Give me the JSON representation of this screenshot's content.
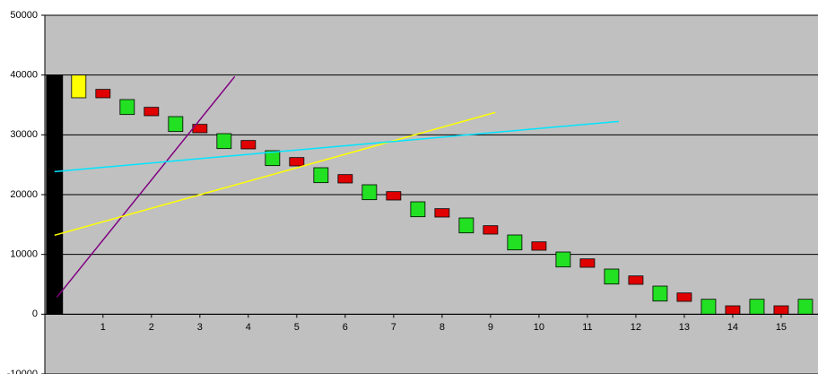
{
  "chart_data": {
    "type": "floating-bar",
    "xlim": [
      -0.2,
      15.76
    ],
    "xticks": [
      1,
      2,
      3,
      4,
      5,
      6,
      7,
      8,
      9,
      10,
      11,
      12,
      13,
      14,
      15
    ],
    "ylim": [
      -10000,
      50000
    ],
    "yticks": [
      -10000,
      0,
      10000,
      20000,
      30000,
      40000,
      50000
    ],
    "grid": true,
    "series": [
      {
        "color": "#000000",
        "x": [
          0
        ],
        "low": [
          0
        ],
        "high": [
          40000
        ]
      },
      {
        "color": "#ffff00",
        "x": [
          0.5
        ],
        "low": [
          36200
        ],
        "high": [
          40000
        ]
      },
      {
        "color": "#22e022",
        "x": [
          1.5,
          2.5,
          3.5,
          4.5,
          5.5,
          6.5,
          7.5,
          8.5,
          9.5,
          10.5,
          11.5,
          12.5,
          13.5,
          14.5,
          15.5
        ],
        "low": [
          33400,
          30550,
          27700,
          24850,
          22000,
          19150,
          16300,
          13600,
          10750,
          7900,
          5050,
          2200,
          0,
          0,
          0
        ],
        "high": [
          35900,
          33050,
          30200,
          27350,
          24500,
          21650,
          18800,
          16100,
          13250,
          10400,
          7550,
          4700,
          2500,
          2500,
          2500
        ]
      },
      {
        "color": "#e00000",
        "x": [
          1,
          2,
          3,
          4,
          5,
          6,
          7,
          8,
          9,
          10,
          11,
          12,
          13,
          14,
          15
        ],
        "low": [
          36200,
          33200,
          30350,
          27650,
          24800,
          21950,
          19100,
          16250,
          13400,
          10700,
          7850,
          5000,
          2150,
          0,
          0
        ],
        "high": [
          37600,
          34600,
          31750,
          29050,
          26200,
          23350,
          20500,
          17650,
          14800,
          12100,
          9250,
          6400,
          3550,
          1400,
          1400
        ]
      }
    ],
    "lines": [
      {
        "color": "#800080",
        "x": [
          0.05,
          3.72
        ],
        "y": [
          2850,
          39750
        ]
      },
      {
        "color": "#ffff00",
        "x": [
          0,
          9.1
        ],
        "y": [
          13200,
          33750
        ]
      },
      {
        "color": "#00e5ff",
        "x": [
          0,
          11.65
        ],
        "y": [
          23850,
          32250
        ]
      }
    ]
  }
}
